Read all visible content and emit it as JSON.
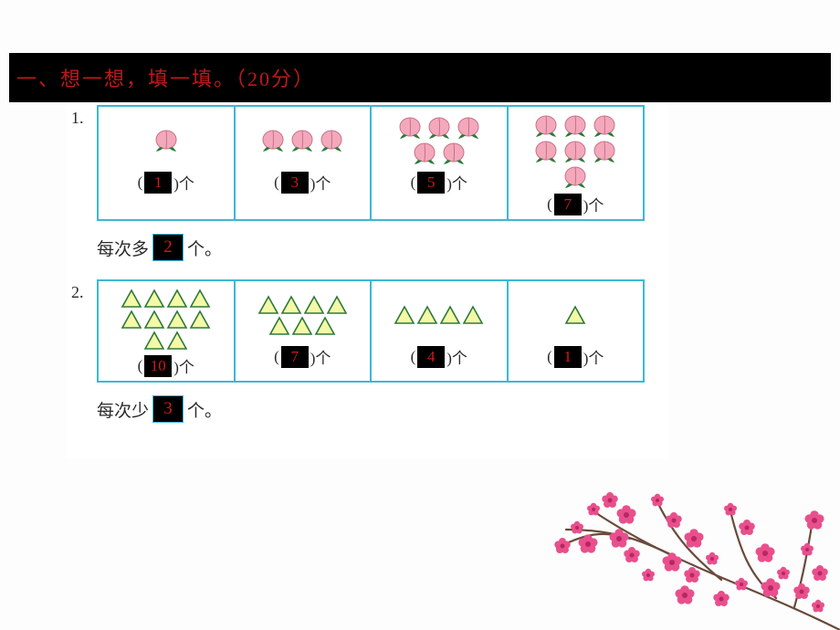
{
  "title": "一、想一想，填一填。（20分）",
  "problems": [
    {
      "num": "1.",
      "icon": "peach",
      "cells": [
        {
          "count": 1,
          "answer": "1"
        },
        {
          "count": 3,
          "answer": "3"
        },
        {
          "count": 5,
          "answer": "5"
        },
        {
          "count": 7,
          "answer": "7"
        }
      ],
      "unit_prefix": "(",
      "unit_suffix": ")个",
      "summary_prefix": "每次多",
      "summary_answer": "2",
      "summary_suffix": "个。"
    },
    {
      "num": "2.",
      "icon": "triangle",
      "cells": [
        {
          "count": 10,
          "answer": "10"
        },
        {
          "count": 7,
          "answer": "7"
        },
        {
          "count": 4,
          "answer": "4"
        },
        {
          "count": 1,
          "answer": "1"
        }
      ],
      "unit_prefix": "(",
      "unit_suffix": ")个",
      "summary_prefix": "每次少",
      "summary_answer": "3",
      "summary_suffix": "个。"
    }
  ],
  "colors": {
    "title_bg": "#000000",
    "title_fg": "#c01818",
    "answer_bg": "#000000",
    "answer_fg": "#d21a1a",
    "grid_border": "#3bb8d8",
    "peach_fill": "#f3a9bb",
    "peach_leaf": "#2e7a3a",
    "triangle_fill": "#f4f9a8",
    "triangle_stroke": "#2e7a3a",
    "flower_pink": "#e94f8c",
    "flower_dark": "#b6285f",
    "branch": "#6a4a3a"
  }
}
